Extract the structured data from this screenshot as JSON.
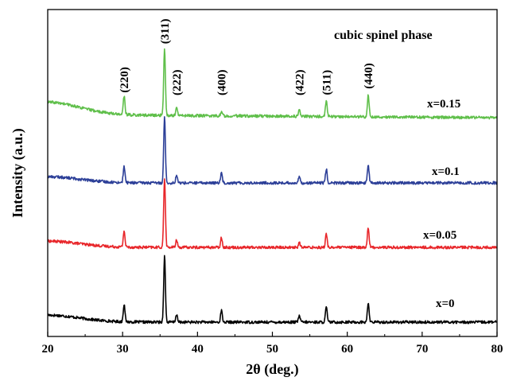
{
  "chart_data": {
    "type": "line",
    "title": "",
    "xlabel": "2θ (deg.)",
    "ylabel": "Intensity (a.u.)",
    "xlim": [
      20,
      80
    ],
    "xticks": [
      20,
      30,
      40,
      50,
      60,
      70,
      80
    ],
    "y_ticks_shown": false,
    "grid": false,
    "annotation": "cubic spinel phase",
    "peaks": [
      {
        "label": "(220)",
        "x": 30.2
      },
      {
        "label": "(311)",
        "x": 35.6
      },
      {
        "label": "(222)",
        "x": 37.2
      },
      {
        "label": "(400)",
        "x": 43.2
      },
      {
        "label": "(422)",
        "x": 53.6
      },
      {
        "label": "(511)",
        "x": 57.2
      },
      {
        "label": "(440)",
        "x": 62.8
      }
    ],
    "series": [
      {
        "name": "x=0",
        "color": "#000000",
        "baseline": 0.0,
        "start_hump": 0.045,
        "peak_heights": [
          0.115,
          0.43,
          0.05,
          0.075,
          0.042,
          0.098,
          0.125
        ]
      },
      {
        "name": "x=0.05",
        "color": "#e8262a",
        "baseline": 1.0,
        "start_hump": 0.04,
        "peak_heights": [
          0.105,
          0.45,
          0.05,
          0.065,
          0.03,
          0.085,
          0.13
        ]
      },
      {
        "name": "x=0.1",
        "color": "#2c3f98",
        "baseline": 2.0,
        "start_hump": 0.04,
        "peak_heights": [
          0.105,
          0.425,
          0.05,
          0.07,
          0.04,
          0.09,
          0.115
        ]
      },
      {
        "name": "x=0.15",
        "color": "#5fbf4a",
        "baseline": 3.0,
        "start_hump": 0.08,
        "peak_heights": [
          0.12,
          0.435,
          0.05,
          0.025,
          0.04,
          0.105,
          0.145
        ]
      }
    ]
  }
}
